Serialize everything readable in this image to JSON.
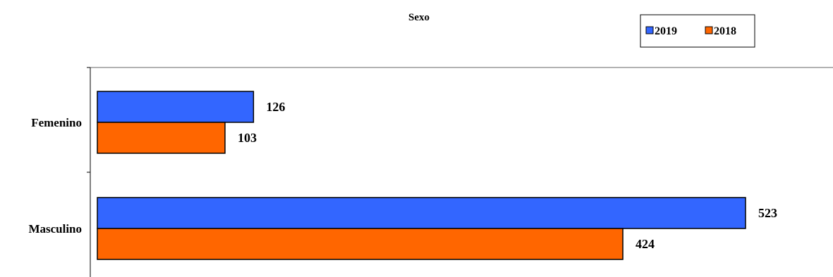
{
  "chart_data": {
    "type": "bar",
    "orientation": "horizontal",
    "title": "Sexo",
    "categories": [
      "Femenino",
      "Masculino"
    ],
    "series": [
      {
        "name": "2019",
        "values": [
          126,
          523
        ],
        "color": "#3366ff"
      },
      {
        "name": "2018",
        "values": [
          103,
          424
        ],
        "color": "#ff6600"
      }
    ],
    "xlim": [
      0,
      590
    ],
    "xlabel": "",
    "ylabel": "",
    "grid": false,
    "legend": "top-right",
    "data_labels": true
  }
}
